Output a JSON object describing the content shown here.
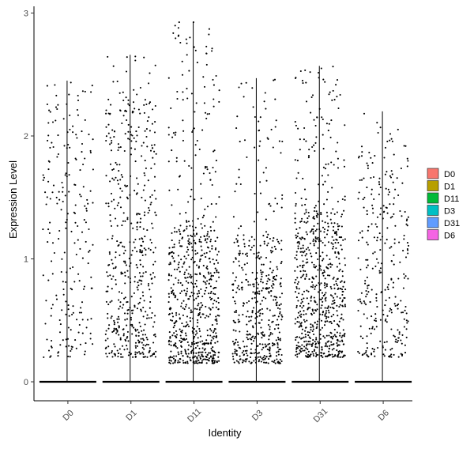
{
  "chart_data": {
    "type": "violin-jitter",
    "xlabel": "Identity",
    "ylabel": "Expression Level",
    "ylim": [
      -0.15,
      3.05
    ],
    "yticks": [
      0,
      1,
      2,
      3
    ],
    "grid": false,
    "legend_position": "right",
    "categories": [
      "D0",
      "D1",
      "D11",
      "D3",
      "D31",
      "D6"
    ],
    "legend": [
      {
        "label": "D0",
        "color": "#F8766D"
      },
      {
        "label": "D1",
        "color": "#B79F00"
      },
      {
        "label": "D11",
        "color": "#00BA38"
      },
      {
        "label": "D3",
        "color": "#00BFC4"
      },
      {
        "label": "D31",
        "color": "#619CFF"
      },
      {
        "label": "D6",
        "color": "#F564E3"
      }
    ],
    "series": [
      {
        "category": "D0",
        "max": 2.45,
        "min": 0.0,
        "nonzero_points": 220,
        "dense_min": 0.2,
        "dense_max": 2.45
      },
      {
        "category": "D1",
        "max": 2.66,
        "min": 0.0,
        "nonzero_points": 520,
        "dense_min": 0.2,
        "dense_max": 2.3
      },
      {
        "category": "D11",
        "max": 2.93,
        "min": 0.0,
        "nonzero_points": 700,
        "dense_min": 0.15,
        "dense_max": 1.3
      },
      {
        "category": "D3",
        "max": 2.47,
        "min": 0.0,
        "nonzero_points": 480,
        "dense_min": 0.15,
        "dense_max": 1.2
      },
      {
        "category": "D31",
        "max": 2.57,
        "min": 0.0,
        "nonzero_points": 720,
        "dense_min": 0.2,
        "dense_max": 1.4
      },
      {
        "category": "D6",
        "max": 2.2,
        "min": 0.0,
        "nonzero_points": 300,
        "dense_min": 0.2,
        "dense_max": 1.85
      }
    ]
  }
}
